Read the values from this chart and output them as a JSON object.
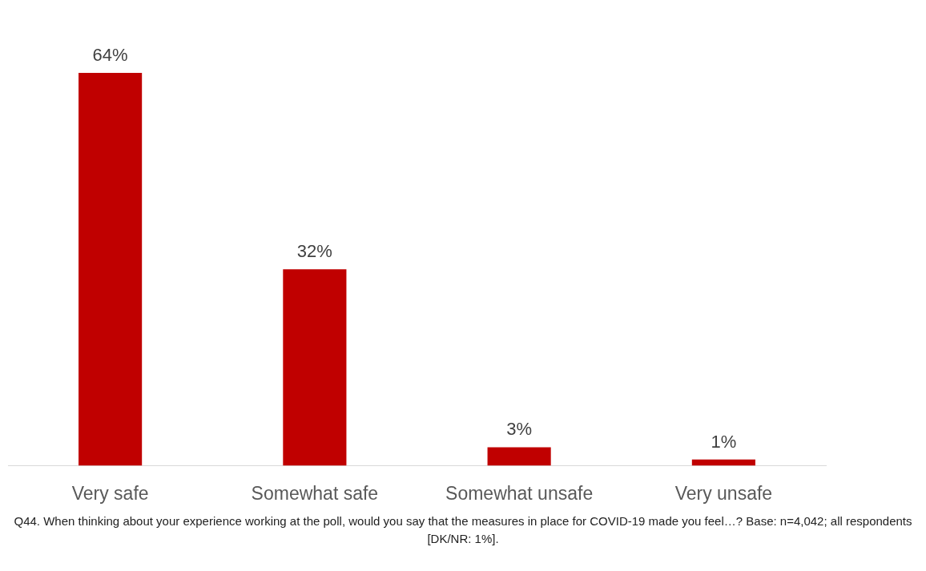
{
  "chart_data": {
    "type": "bar",
    "categories": [
      "Very safe",
      "Somewhat safe",
      "Somewhat unsafe",
      "Very unsafe"
    ],
    "values": [
      64,
      32,
      3,
      1
    ],
    "color": "#c00000",
    "tick_labels": "x",
    "value_labels": [
      "64%",
      "32%",
      "3%",
      "1%"
    ],
    "annotations": [
      "Q44. When thinking about your experience working at the poll, would you say that the measures in place for COVID-19 made you feel…? Base: n=4,042; all respondents [DK/NR: 1%]."
    ]
  }
}
